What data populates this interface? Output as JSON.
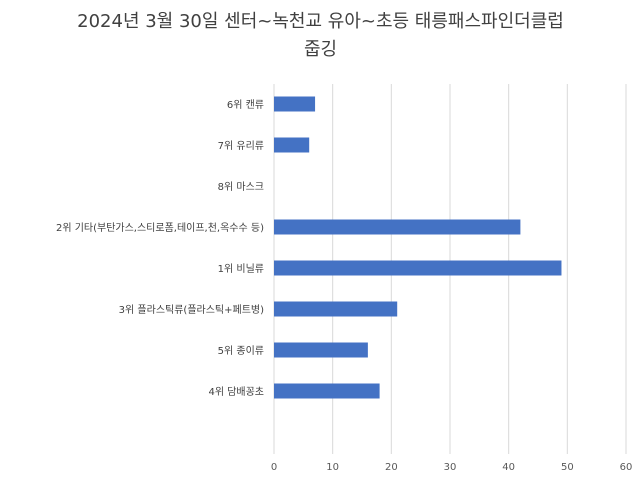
{
  "chart_data": {
    "type": "bar",
    "orientation": "horizontal",
    "title_lines": [
      "2024년 3월 30일 센터~녹천교 유아~초등 태릉패스파인더클럽",
      "줍깅"
    ],
    "categories": [
      "6위 캔류",
      "7위 유리류",
      "8위 마스크",
      "2위 기타(부탄가스,스티로폼,테이프,천,옥수수 등)",
      "1위 비닐류",
      "3위 플라스틱류(플라스틱+페트병)",
      "5위 종이류",
      "4위 담배꽁초"
    ],
    "values": [
      7,
      6,
      0,
      42,
      49,
      21,
      16,
      18
    ],
    "xlim": [
      0,
      60
    ],
    "xticks": [
      0,
      10,
      20,
      30,
      40,
      50,
      60
    ],
    "grid": true,
    "legend": "none",
    "bar_color": "#4472C4",
    "grid_color": "#D9D9D9"
  }
}
